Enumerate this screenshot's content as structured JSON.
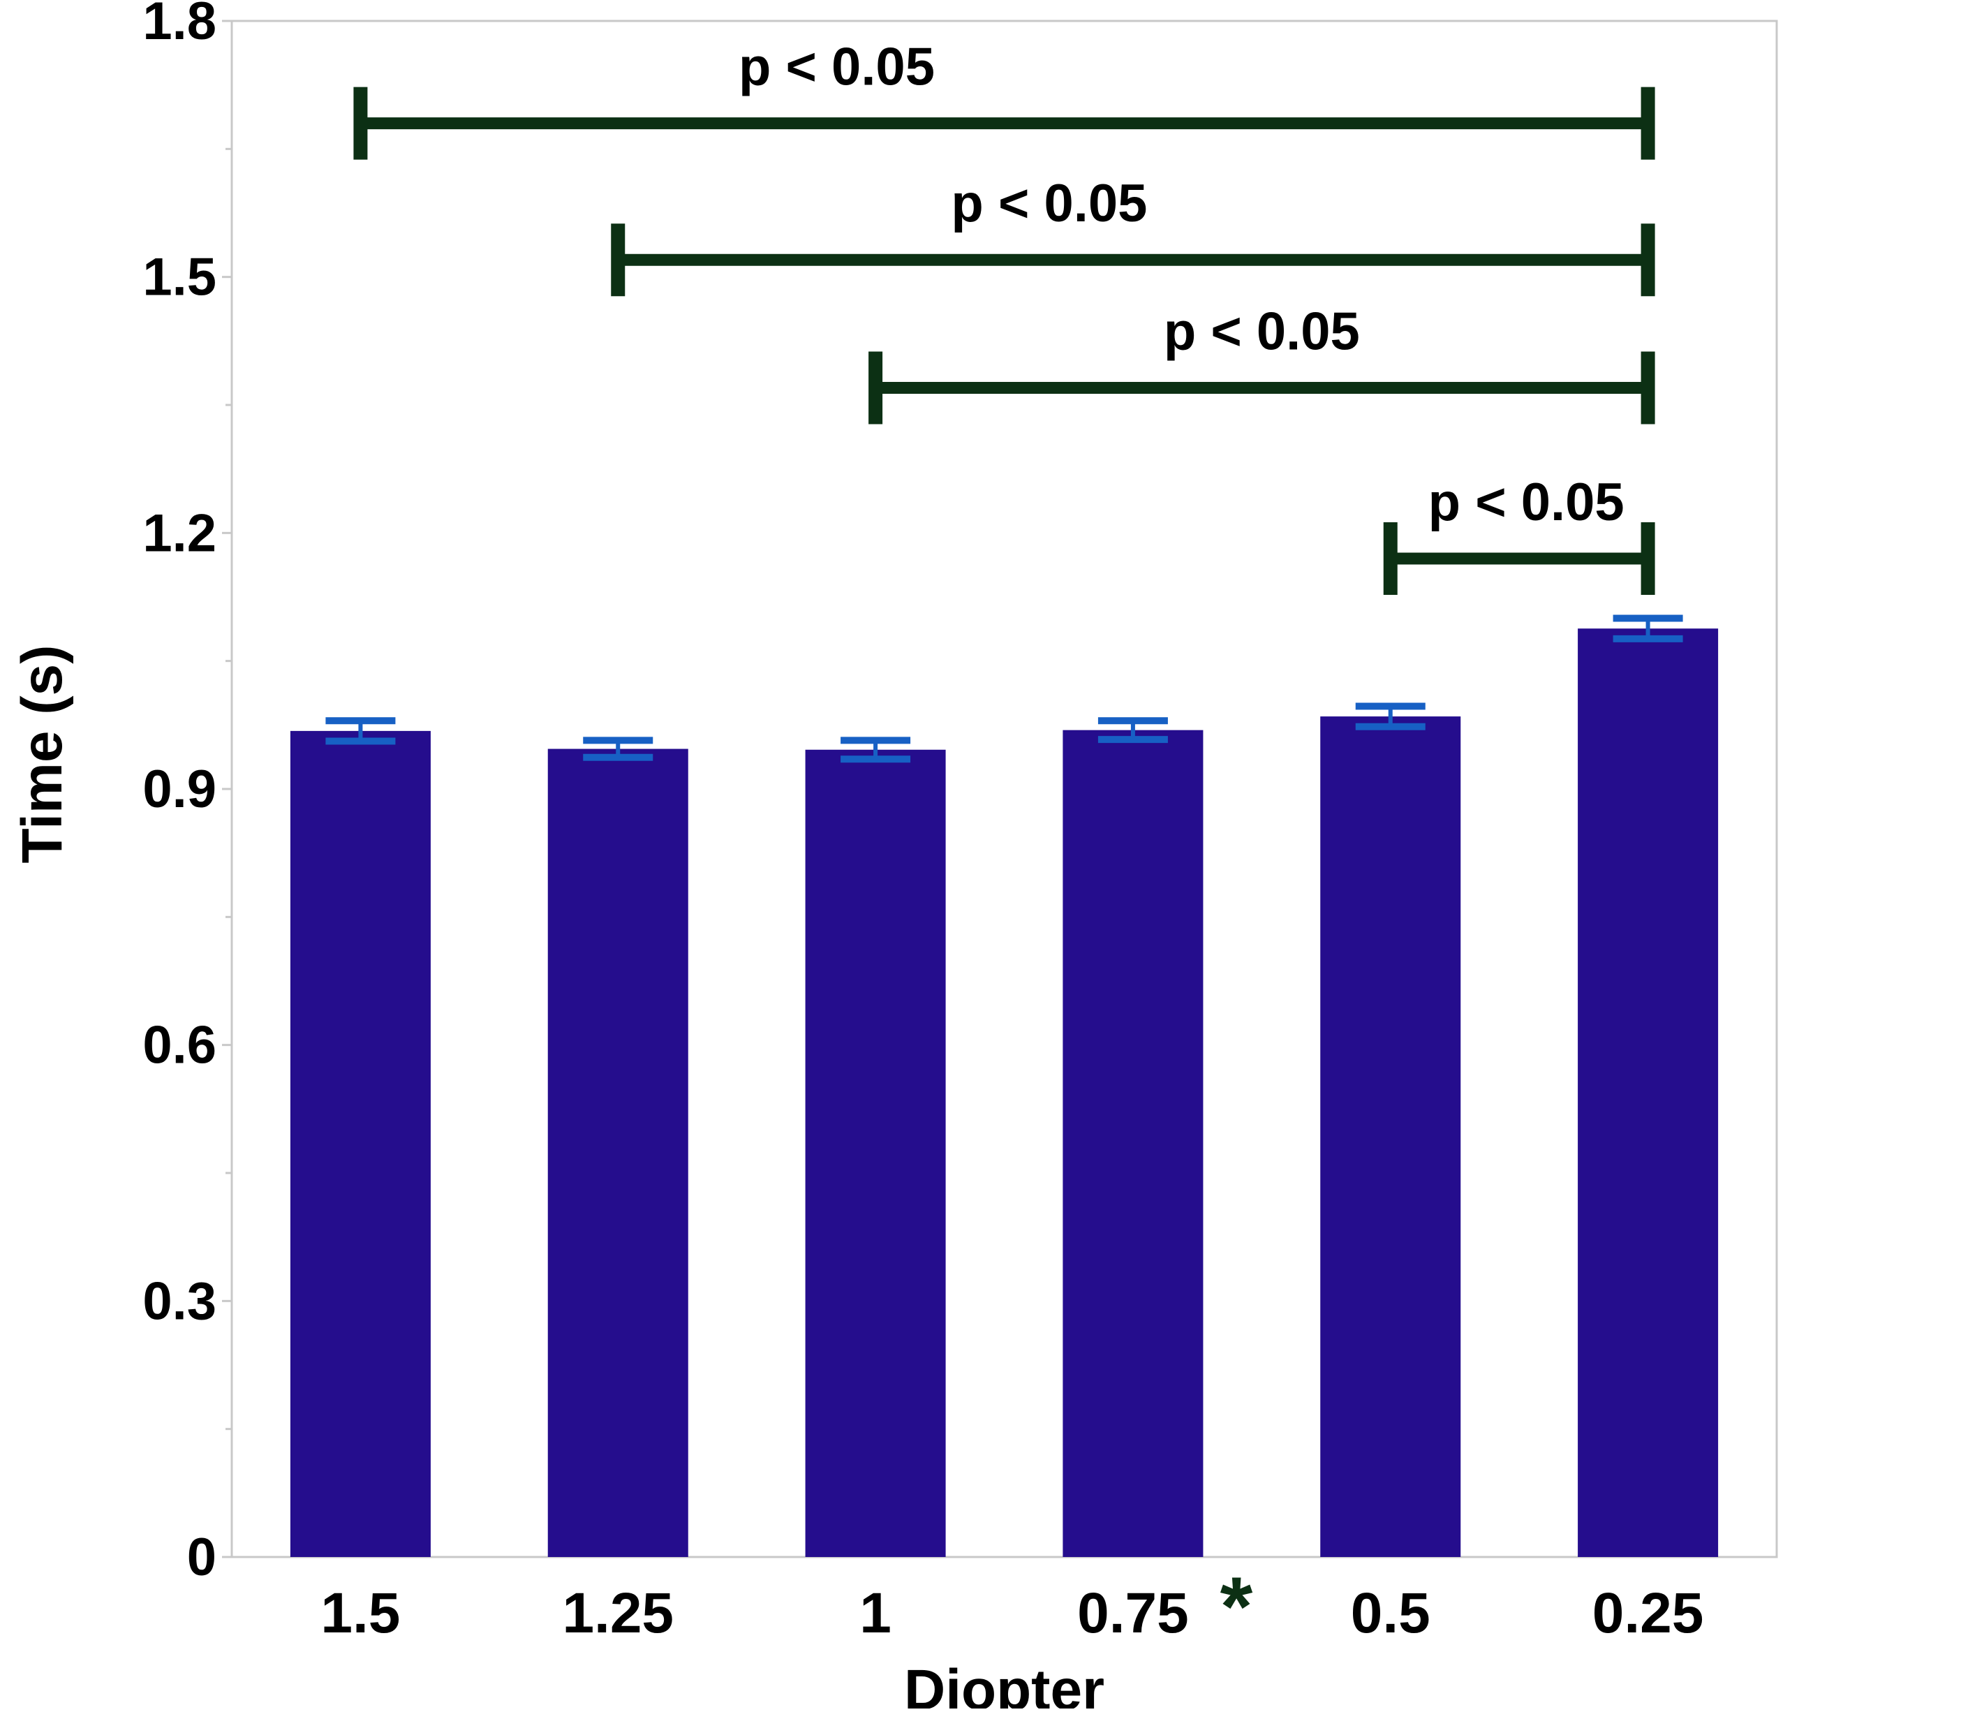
{
  "chart_data": {
    "type": "bar",
    "categories": [
      "1.5",
      "1.25",
      "1",
      "0.75",
      "0.5",
      "0.25"
    ],
    "values": [
      0.968,
      0.947,
      0.946,
      0.969,
      0.985,
      1.088
    ],
    "errors": [
      0.012,
      0.01,
      0.011,
      0.011,
      0.012,
      0.012
    ],
    "xlabel": "Diopter",
    "ylabel": "Time (s)",
    "ylim": [
      0,
      1.8
    ],
    "yticks": [
      "0",
      "0.3",
      "0.6",
      "0.9",
      "1.2",
      "1.5",
      "1.8"
    ],
    "marked_category": {
      "category": "0.75",
      "symbol": "*"
    },
    "significance": [
      {
        "from": "1.5",
        "to": "0.25",
        "y": 1.68,
        "label": "p < 0.05"
      },
      {
        "from": "1.25",
        "to": "0.25",
        "y": 1.52,
        "label": "p < 0.05"
      },
      {
        "from": "1",
        "to": "0.25",
        "y": 1.37,
        "label": "p < 0.05"
      },
      {
        "from": "0.5",
        "to": "0.25",
        "y": 1.17,
        "label": "p < 0.05"
      }
    ],
    "grid": false,
    "legend": "none",
    "colors": {
      "bar": "#250d8d",
      "error_bar": "#1760c4",
      "significance": "#0c3014",
      "marker": "#0c3014",
      "frame": "#c8c8c8"
    }
  }
}
